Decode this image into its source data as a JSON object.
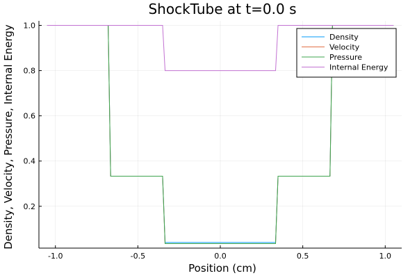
{
  "chart_data": {
    "type": "line",
    "title": "ShockTube at t=0.0 s",
    "xlabel": "Position (cm)",
    "ylabel": "Density, Velocity, Pressure, Internal Energy",
    "xlim": [
      -1.1,
      1.1
    ],
    "ylim": [
      0.015,
      1.02
    ],
    "xticks": [
      -1.0,
      -0.5,
      0.0,
      0.5,
      1.0
    ],
    "xtick_labels": [
      "-1.0",
      "-0.5",
      "0.0",
      "0.5",
      "1.0"
    ],
    "yticks": [
      0.2,
      0.4,
      0.6,
      0.8,
      1.0
    ],
    "ytick_labels": [
      "0.2",
      "0.4",
      "0.6",
      "0.8",
      "1.0"
    ],
    "grid": true,
    "legend_position": "top-right",
    "series": [
      {
        "name": "Density",
        "color": "#009af9",
        "x": [
          -1.05,
          -0.68,
          -0.665,
          -0.35,
          -0.335,
          0.335,
          0.35,
          0.665,
          0.68,
          1.05
        ],
        "y": [
          1.0,
          1.0,
          0.333,
          0.333,
          0.04,
          0.04,
          0.333,
          0.333,
          1.0,
          1.0
        ]
      },
      {
        "name": "Velocity",
        "color": "#e26f46",
        "x": [
          -1.05,
          -0.68,
          -0.665,
          -0.35,
          -0.335,
          0.335,
          0.35,
          0.665,
          0.68,
          1.05
        ],
        "y": [
          1.0,
          1.0,
          0.333,
          0.333,
          0.035,
          0.035,
          0.333,
          0.333,
          1.0,
          1.0
        ]
      },
      {
        "name": "Pressure",
        "color": "#3da44d",
        "x": [
          -1.05,
          -0.68,
          -0.665,
          -0.35,
          -0.335,
          0.335,
          0.35,
          0.665,
          0.68,
          1.05
        ],
        "y": [
          1.0,
          1.0,
          0.333,
          0.333,
          0.035,
          0.035,
          0.333,
          0.333,
          1.0,
          1.0
        ]
      },
      {
        "name": "Internal Energy",
        "color": "#c271d2",
        "x": [
          -1.05,
          -0.35,
          -0.335,
          0.335,
          0.35,
          1.05
        ],
        "y": [
          1.0,
          1.0,
          0.8,
          0.8,
          1.0,
          1.0
        ]
      }
    ]
  }
}
